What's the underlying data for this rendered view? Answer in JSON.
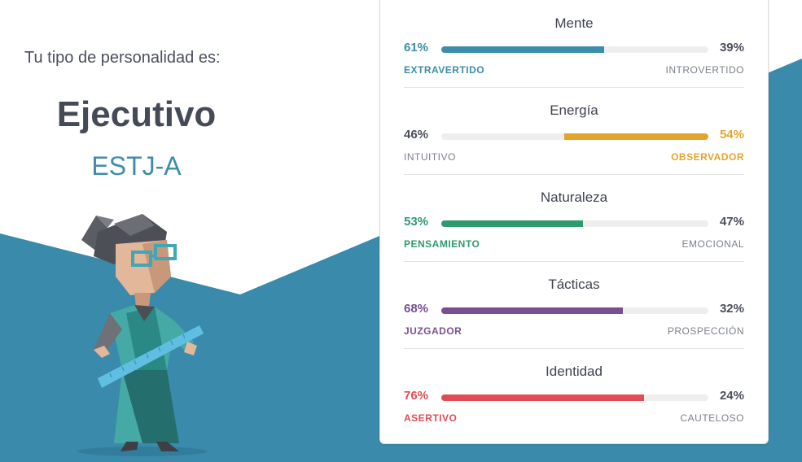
{
  "intro": "Tu tipo de personalidad es:",
  "type_name": "Ejecutivo",
  "type_code": "ESTJ-A",
  "colors": {
    "background_blue": "#3a8aab",
    "card_border": "#dcdcdc",
    "track": "#eeeeee"
  },
  "traits": [
    {
      "title": "Mente",
      "left_pct": "61%",
      "right_pct": "39%",
      "left_label": "EXTRAVERTIDO",
      "right_label": "INTROVERTIDO",
      "dominant": "left",
      "fill_fraction": 0.61,
      "color": "#3b8eaa"
    },
    {
      "title": "Energía",
      "left_pct": "46%",
      "right_pct": "54%",
      "left_label": "INTUITIVO",
      "right_label": "OBSERVADOR",
      "dominant": "right",
      "fill_fraction": 0.54,
      "color": "#e2a52b"
    },
    {
      "title": "Naturaleza",
      "left_pct": "53%",
      "right_pct": "47%",
      "left_label": "PENSAMIENTO",
      "right_label": "EMOCIONAL",
      "dominant": "left",
      "fill_fraction": 0.53,
      "color": "#2e9b6e"
    },
    {
      "title": "Tácticas",
      "left_pct": "68%",
      "right_pct": "32%",
      "left_label": "JUZGADOR",
      "right_label": "PROSPECCIÓN",
      "dominant": "left",
      "fill_fraction": 0.68,
      "color": "#7a4f92"
    },
    {
      "title": "Identidad",
      "left_pct": "76%",
      "right_pct": "24%",
      "left_label": "ASERTIVO",
      "right_label": "CAUTELOSO",
      "dominant": "left",
      "fill_fraction": 0.76,
      "color": "#e24b53"
    }
  ]
}
